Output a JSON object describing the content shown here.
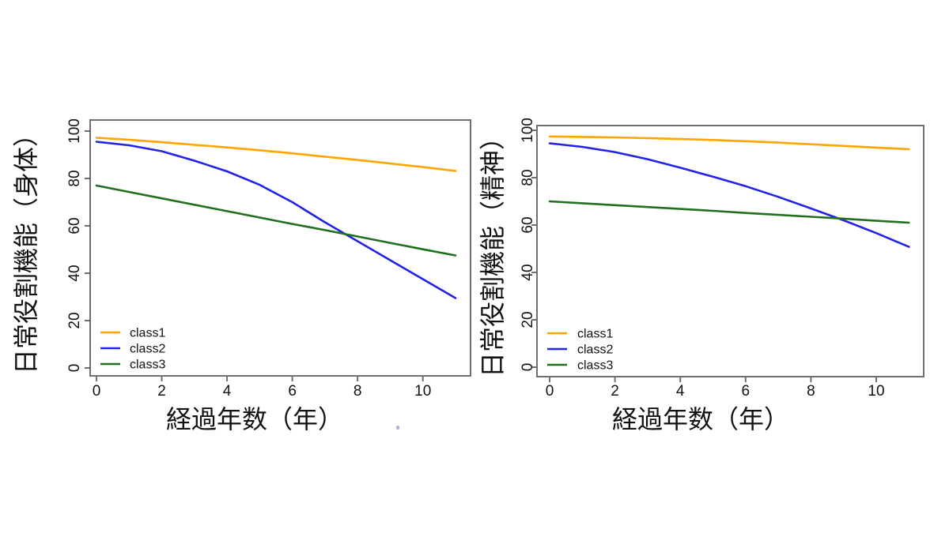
{
  "figure": {
    "background": "#ffffff",
    "axis_box_color": "#6f6f6f",
    "tick_color": "#6f6f6f",
    "text_color": "#111111"
  },
  "chart_data": [
    {
      "type": "line",
      "title": "",
      "xlabel": "経過年数（年）",
      "ylabel": "日常役割機能（身体）",
      "xlim": [
        0,
        11
      ],
      "ylim": [
        0,
        100
      ],
      "xticks": [
        0,
        2,
        4,
        6,
        8,
        10
      ],
      "yticks": [
        0,
        20,
        40,
        60,
        80,
        100
      ],
      "grid": false,
      "legend_position": "bottom-left",
      "x": [
        0,
        1,
        2,
        3,
        4,
        5,
        6,
        7,
        8,
        9,
        10,
        11
      ],
      "series": [
        {
          "name": "class1",
          "color": "#FFA500",
          "values": [
            97.2,
            96.3,
            95.3,
            94.2,
            93.1,
            91.9,
            90.6,
            89.2,
            87.8,
            86.3,
            84.8,
            83.2
          ]
        },
        {
          "name": "class2",
          "color": "#2222E8",
          "values": [
            95.5,
            94.0,
            91.5,
            87.5,
            83.0,
            77.3,
            70.0,
            61.5,
            53.5,
            45.5,
            37.5,
            29.5
          ]
        },
        {
          "name": "class3",
          "color": "#207020",
          "values": [
            77.0,
            74.3,
            71.6,
            68.9,
            66.2,
            63.5,
            60.8,
            58.2,
            55.5,
            52.8,
            50.1,
            47.5
          ]
        }
      ]
    },
    {
      "type": "line",
      "title": "",
      "xlabel": "経過年数（年）",
      "ylabel": "日常役割機能（精神）",
      "xlim": [
        0,
        11
      ],
      "ylim": [
        0,
        100
      ],
      "xticks": [
        0,
        2,
        4,
        6,
        8,
        10
      ],
      "yticks": [
        0,
        20,
        40,
        60,
        80,
        100
      ],
      "grid": false,
      "legend_position": "bottom-left",
      "x": [
        0,
        1,
        2,
        3,
        4,
        5,
        6,
        7,
        8,
        9,
        10,
        11
      ],
      "series": [
        {
          "name": "class1",
          "color": "#FFA500",
          "values": [
            97.4,
            97.2,
            97.0,
            96.7,
            96.3,
            95.9,
            95.4,
            94.8,
            94.1,
            93.4,
            92.7,
            92.0
          ]
        },
        {
          "name": "class2",
          "color": "#2222E8",
          "values": [
            94.5,
            93.0,
            90.8,
            87.8,
            84.2,
            80.4,
            76.4,
            71.9,
            67.0,
            62.0,
            56.6,
            50.8
          ]
        },
        {
          "name": "class3",
          "color": "#207020",
          "values": [
            70.0,
            69.2,
            68.4,
            67.6,
            66.8,
            66.0,
            65.1,
            64.3,
            63.5,
            62.7,
            61.8,
            61.0
          ]
        }
      ]
    }
  ]
}
